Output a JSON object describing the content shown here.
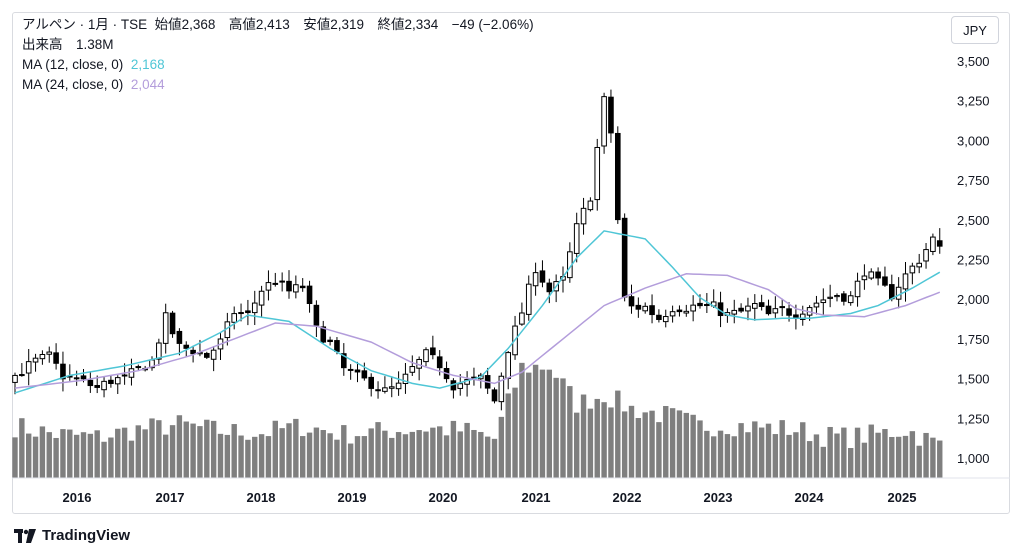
{
  "header": {
    "symbol": "アルペン · 1月 · TSE",
    "ohlc": "始値2,368　高値2,413　安値2,319　終値2,334　−49 (−2.06%)",
    "volume": "出来高　1.38M",
    "ma12_label": "MA (12, close, 0)",
    "ma12_value": "2,168",
    "ma24_label": "MA (24, close, 0)",
    "ma24_value": "2,044"
  },
  "currency": "JPY",
  "brand": "TradingView",
  "colors": {
    "ma12": "#4fc6d6",
    "ma24": "#b39ddb",
    "up": "#ffffff",
    "down": "#000000",
    "volume": "#7f7f7f"
  },
  "chart_data": {
    "type": "candlestick",
    "interval": "monthly",
    "x_tick_labels": [
      "2016",
      "2017",
      "2018",
      "2019",
      "2020",
      "2021",
      "2022",
      "2023",
      "2024",
      "2025"
    ],
    "y_tick_labels": [
      "3,500",
      "3,250",
      "3,000",
      "2,750",
      "2,500",
      "2,250",
      "2,000",
      "1,750",
      "1,500",
      "1,250",
      "1,000"
    ],
    "ylim": [
      890,
      3600
    ],
    "series": [
      {
        "name": "MA (12, close, 0)",
        "anchors": [
          [
            0,
            1410
          ],
          [
            8,
            1520
          ],
          [
            16,
            1580
          ],
          [
            24,
            1660
          ],
          [
            30,
            1790
          ],
          [
            34,
            1900
          ],
          [
            40,
            1860
          ],
          [
            46,
            1690
          ],
          [
            52,
            1550
          ],
          [
            58,
            1470
          ],
          [
            62,
            1440
          ],
          [
            68,
            1510
          ],
          [
            72,
            1690
          ],
          [
            77,
            1960
          ],
          [
            82,
            2260
          ],
          [
            86,
            2430
          ],
          [
            92,
            2380
          ],
          [
            96,
            2200
          ],
          [
            100,
            2010
          ],
          [
            104,
            1900
          ],
          [
            108,
            1870
          ],
          [
            112,
            1880
          ],
          [
            116,
            1880
          ],
          [
            122,
            1910
          ],
          [
            126,
            1960
          ],
          [
            131,
            2070
          ],
          [
            135,
            2170
          ]
        ]
      },
      {
        "name": "MA (24, close, 0)",
        "anchors": [
          [
            0,
            1440
          ],
          [
            10,
            1490
          ],
          [
            18,
            1550
          ],
          [
            26,
            1650
          ],
          [
            32,
            1750
          ],
          [
            38,
            1850
          ],
          [
            44,
            1830
          ],
          [
            52,
            1730
          ],
          [
            58,
            1600
          ],
          [
            64,
            1520
          ],
          [
            70,
            1470
          ],
          [
            74,
            1540
          ],
          [
            80,
            1750
          ],
          [
            86,
            1960
          ],
          [
            92,
            2070
          ],
          [
            98,
            2160
          ],
          [
            104,
            2150
          ],
          [
            110,
            2060
          ],
          [
            114,
            1940
          ],
          [
            118,
            1900
          ],
          [
            124,
            1890
          ],
          [
            130,
            1960
          ],
          [
            135,
            2044
          ]
        ]
      }
    ],
    "volume_anchors": [
      [
        0,
        1200
      ],
      [
        6,
        1150
      ],
      [
        12,
        1130
      ],
      [
        18,
        1180
      ],
      [
        24,
        1210
      ],
      [
        30,
        1170
      ],
      [
        36,
        1160
      ],
      [
        42,
        1200
      ],
      [
        48,
        1150
      ],
      [
        54,
        1170
      ],
      [
        60,
        1190
      ],
      [
        66,
        1170
      ],
      [
        70,
        1120
      ],
      [
        74,
        1570
      ],
      [
        78,
        1580
      ],
      [
        82,
        1340
      ],
      [
        86,
        1400
      ],
      [
        90,
        1310
      ],
      [
        96,
        1260
      ],
      [
        100,
        1200
      ],
      [
        104,
        1210
      ],
      [
        110,
        1190
      ],
      [
        114,
        1180
      ],
      [
        118,
        1140
      ],
      [
        122,
        1130
      ],
      [
        126,
        1150
      ],
      [
        130,
        1180
      ],
      [
        135,
        1080
      ]
    ],
    "ohlc_last": {
      "open": 2368,
      "high": 2413,
      "low": 2319,
      "close": 2334
    },
    "close_anchors": [
      [
        0,
        1520
      ],
      [
        3,
        1610
      ],
      [
        5,
        1640
      ],
      [
        7,
        1520
      ],
      [
        10,
        1480
      ],
      [
        12,
        1440
      ],
      [
        14,
        1490
      ],
      [
        16,
        1500
      ],
      [
        18,
        1560
      ],
      [
        20,
        1610
      ],
      [
        22,
        1880
      ],
      [
        24,
        1700
      ],
      [
        26,
        1680
      ],
      [
        28,
        1640
      ],
      [
        30,
        1730
      ],
      [
        32,
        1920
      ],
      [
        34,
        1900
      ],
      [
        36,
        2060
      ],
      [
        38,
        2120
      ],
      [
        40,
        2050
      ],
      [
        42,
        2080
      ],
      [
        44,
        1810
      ],
      [
        46,
        1720
      ],
      [
        48,
        1560
      ],
      [
        50,
        1510
      ],
      [
        52,
        1470
      ],
      [
        54,
        1420
      ],
      [
        56,
        1450
      ],
      [
        58,
        1560
      ],
      [
        60,
        1650
      ],
      [
        62,
        1590
      ],
      [
        64,
        1460
      ],
      [
        66,
        1480
      ],
      [
        68,
        1500
      ],
      [
        70,
        1360
      ],
      [
        72,
        1690
      ],
      [
        74,
        1920
      ],
      [
        76,
        2200
      ],
      [
        78,
        2050
      ],
      [
        80,
        2120
      ],
      [
        82,
        2450
      ],
      [
        84,
        2650
      ],
      [
        86,
        3250
      ],
      [
        87,
        3050
      ],
      [
        88,
        2500
      ],
      [
        89,
        2000
      ],
      [
        90,
        1950
      ],
      [
        92,
        1950
      ],
      [
        94,
        1880
      ],
      [
        96,
        1950
      ],
      [
        98,
        1950
      ],
      [
        100,
        1960
      ],
      [
        102,
        1950
      ],
      [
        104,
        1900
      ],
      [
        106,
        1920
      ],
      [
        108,
        1960
      ],
      [
        110,
        1900
      ],
      [
        112,
        1930
      ],
      [
        114,
        1910
      ],
      [
        116,
        1960
      ],
      [
        118,
        2000
      ],
      [
        120,
        2030
      ],
      [
        122,
        2010
      ],
      [
        124,
        2180
      ],
      [
        126,
        2100
      ],
      [
        128,
        2030
      ],
      [
        130,
        2150
      ],
      [
        132,
        2250
      ],
      [
        134,
        2380
      ],
      [
        135,
        2334
      ]
    ]
  }
}
